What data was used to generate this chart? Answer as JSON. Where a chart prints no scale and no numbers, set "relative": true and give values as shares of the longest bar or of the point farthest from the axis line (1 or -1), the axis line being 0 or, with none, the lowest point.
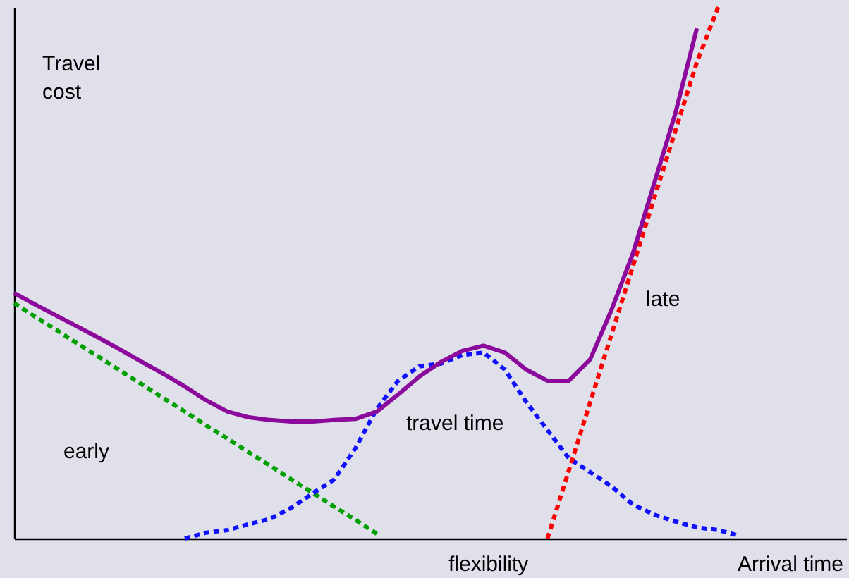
{
  "chart_data": {
    "type": "line",
    "relative": true,
    "xlabel": "Arrival time",
    "ylabel": "Travel cost",
    "categories": [
      null,
      null,
      null,
      null,
      null,
      null,
      null,
      null,
      null,
      null,
      null,
      null,
      null,
      null,
      null,
      null,
      null,
      null,
      null,
      null,
      null,
      null,
      null,
      null,
      null,
      null,
      null,
      null,
      null,
      null,
      null,
      null,
      null,
      null,
      null,
      null,
      null,
      null,
      null,
      null
    ],
    "series": [
      {
        "color": "#00a000",
        "line_style": "dashed",
        "values": [
          0.443,
          0.417,
          0.392,
          0.366,
          0.341,
          0.315,
          0.29,
          0.264,
          0.239,
          0.213,
          0.188,
          0.162,
          0.137,
          0.111,
          0.086,
          0.06,
          0.035,
          0.009,
          null,
          null,
          null,
          null,
          null,
          null,
          null,
          null,
          null,
          null,
          null,
          null,
          null,
          null,
          null,
          null,
          null,
          null,
          null,
          null,
          null,
          null
        ]
      },
      {
        "color": "#1010ff",
        "line_style": "dashed",
        "values": [
          null,
          null,
          null,
          null,
          null,
          null,
          null,
          null,
          0,
          0.011,
          0.016,
          0.027,
          0.037,
          0.058,
          0.085,
          0.111,
          0.17,
          0.244,
          0.297,
          0.324,
          0.329,
          0.345,
          0.35,
          0.318,
          0.257,
          0.204,
          0.151,
          0.125,
          0.098,
          0.064,
          0.045,
          0.032,
          0.021,
          0.016,
          0.005,
          null,
          null,
          null,
          null,
          null
        ]
      },
      {
        "color": "#ff0000",
        "line_style": "dashed",
        "values": [
          null,
          null,
          null,
          null,
          null,
          null,
          null,
          null,
          null,
          null,
          null,
          null,
          null,
          null,
          null,
          null,
          null,
          null,
          null,
          null,
          null,
          null,
          null,
          null,
          null,
          0,
          0.128,
          0.256,
          0.384,
          0.512,
          0.64,
          0.768,
          0.896,
          1.0,
          null,
          null,
          null,
          null,
          null,
          null
        ]
      },
      {
        "color": "#8b0a9b",
        "line_style": "solid",
        "values": [
          0.462,
          0.44,
          0.419,
          0.398,
          0.377,
          0.355,
          0.332,
          0.31,
          0.286,
          0.26,
          0.239,
          0.228,
          0.223,
          0.22,
          0.22,
          0.223,
          0.225,
          0.239,
          0.271,
          0.305,
          0.332,
          0.353,
          0.363,
          0.35,
          0.318,
          0.297,
          0.297,
          0.337,
          0.43,
          0.536,
          0.668,
          0.801,
          0.96,
          null,
          null,
          null,
          null,
          null,
          null,
          null
        ]
      }
    ],
    "annotations": [
      "early",
      "late",
      "travel time",
      "flexibility"
    ],
    "tick_labels": false,
    "grid": false,
    "marker": "none"
  }
}
